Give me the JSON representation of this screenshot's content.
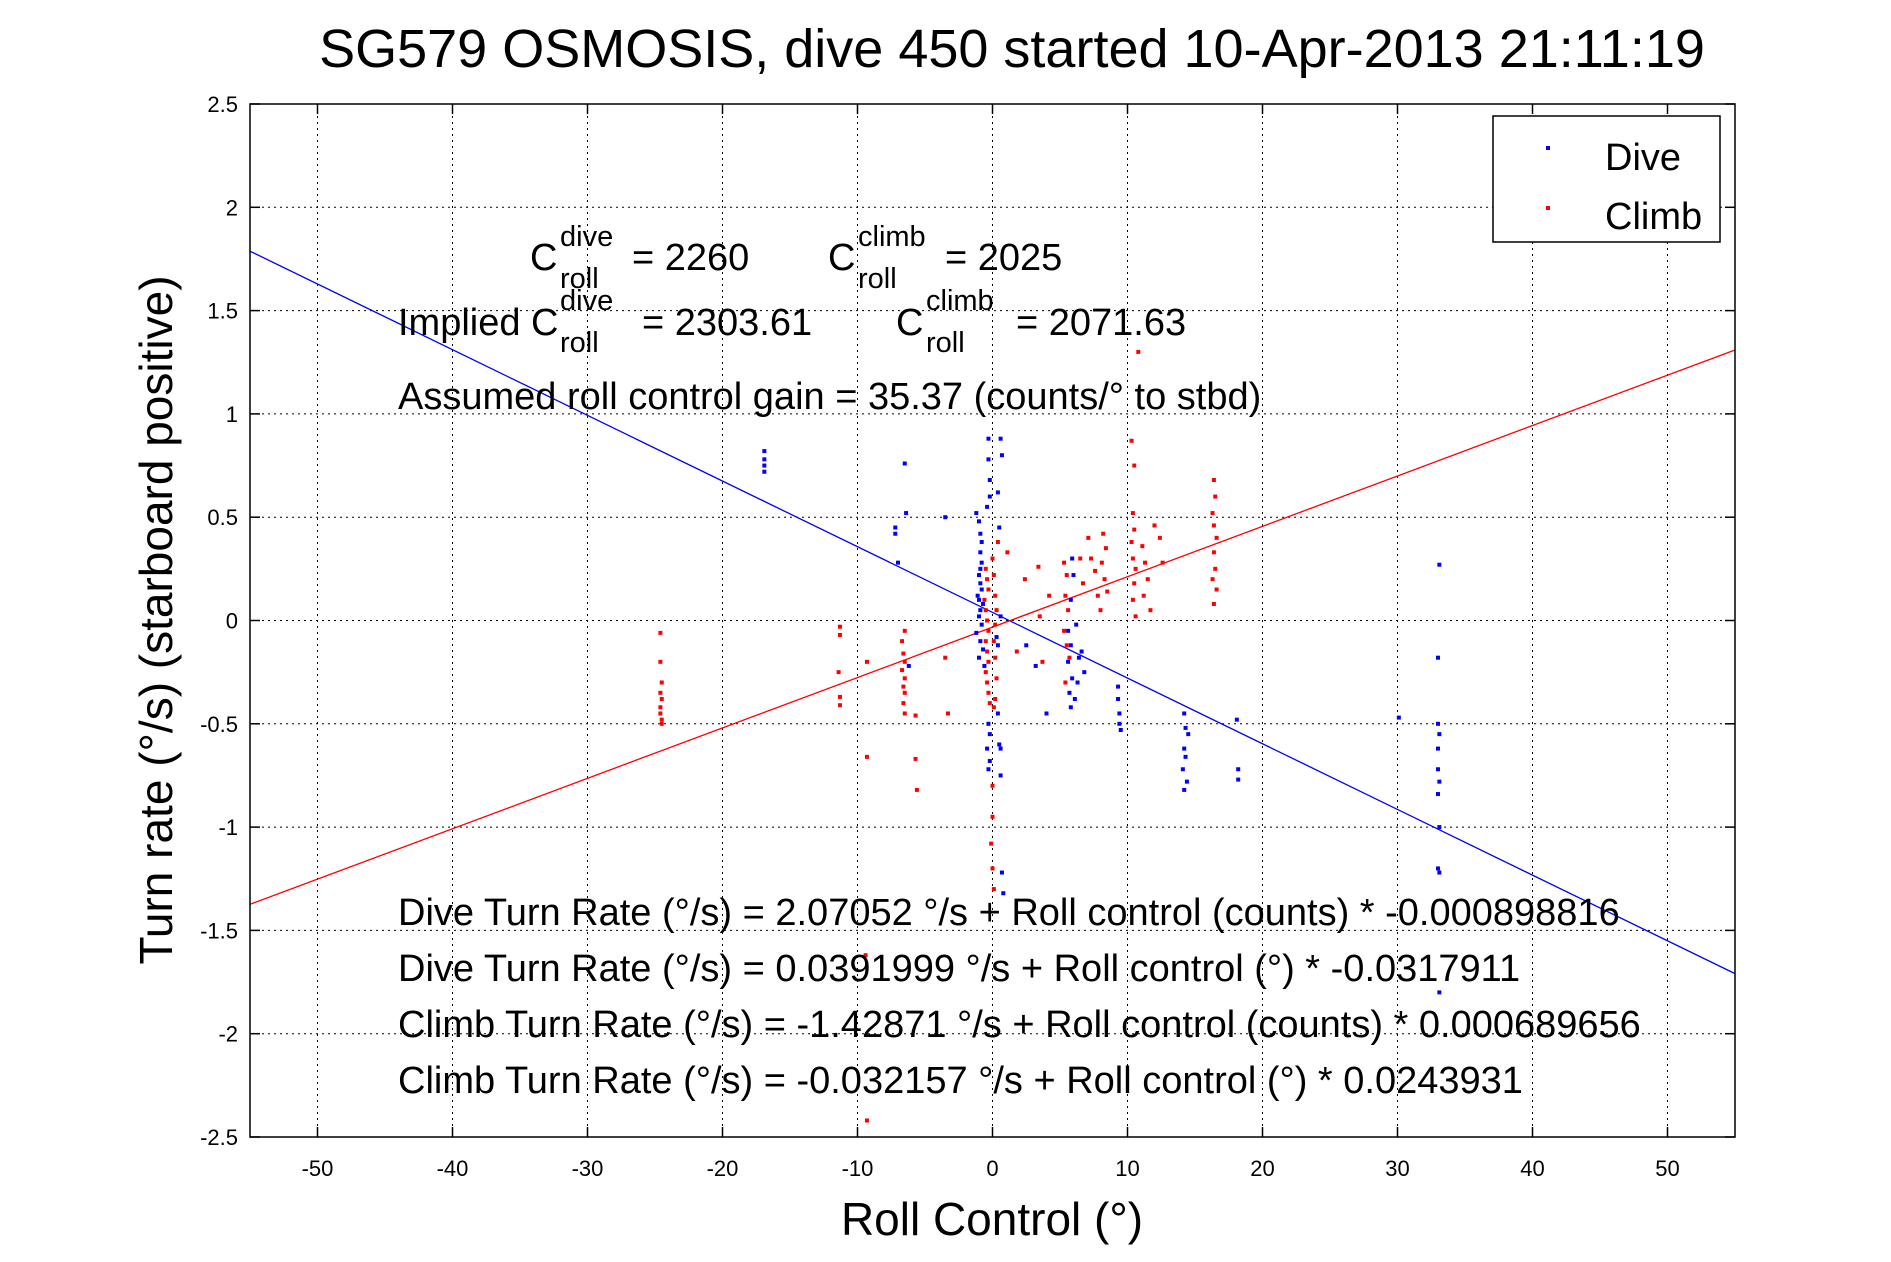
{
  "chart_data": {
    "type": "scatter",
    "title": "SG579 OSMOSIS, dive 450 started 10-Apr-2013 21:11:19",
    "xlabel": "Roll Control (°)",
    "ylabel": "Turn rate (°/s) (starboard positive)",
    "xlim": [
      -55,
      55
    ],
    "ylim": [
      -2.5,
      2.5
    ],
    "xticks": [
      -50,
      -40,
      -30,
      -20,
      -10,
      0,
      10,
      20,
      30,
      40,
      50
    ],
    "yticks": [
      -2.5,
      -2,
      -1.5,
      -1,
      -0.5,
      0,
      0.5,
      1,
      1.5,
      2,
      2.5
    ],
    "xtick_labels": [
      "-50",
      "-40",
      "-30",
      "-20",
      "-10",
      "0",
      "10",
      "20",
      "30",
      "40",
      "50"
    ],
    "ytick_labels": [
      "-2.5",
      "-2",
      "-1.5",
      "-1",
      "-0.5",
      "0",
      "0.5",
      "1",
      "1.5",
      "2",
      "2.5"
    ],
    "grid": true,
    "legend_position": "top-right",
    "series": [
      {
        "name": "Dive",
        "color": "#0000ff",
        "points": [
          [
            -16.9,
            0.82
          ],
          [
            -16.9,
            0.78
          ],
          [
            -16.9,
            0.75
          ],
          [
            -16.9,
            0.72
          ],
          [
            -6.5,
            0.76
          ],
          [
            -7.2,
            0.45
          ],
          [
            -7.2,
            0.42
          ],
          [
            -7.0,
            0.28
          ],
          [
            -6.4,
            0.52
          ],
          [
            -3.5,
            0.5
          ],
          [
            -6.2,
            -0.22
          ],
          [
            -1.2,
            0.52
          ],
          [
            -1.0,
            0.48
          ],
          [
            -0.9,
            0.42
          ],
          [
            -0.8,
            0.38
          ],
          [
            -0.9,
            0.33
          ],
          [
            -0.8,
            0.28
          ],
          [
            -0.9,
            0.25
          ],
          [
            -1.0,
            0.22
          ],
          [
            -0.9,
            0.18
          ],
          [
            -0.8,
            0.15
          ],
          [
            -1.1,
            0.12
          ],
          [
            -1.0,
            0.1
          ],
          [
            -0.7,
            0.08
          ],
          [
            -0.9,
            0.05
          ],
          [
            -1.0,
            0.02
          ],
          [
            -0.8,
            -0.02
          ],
          [
            -1.2,
            -0.06
          ],
          [
            -0.9,
            -0.1
          ],
          [
            -0.7,
            -0.14
          ],
          [
            -1.0,
            -0.18
          ],
          [
            -0.6,
            -0.22
          ],
          [
            -0.3,
            0.88
          ],
          [
            -0.3,
            0.78
          ],
          [
            -0.2,
            0.68
          ],
          [
            -0.2,
            0.6
          ],
          [
            -0.4,
            0.55
          ],
          [
            0.6,
            0.88
          ],
          [
            0.7,
            0.8
          ],
          [
            0.4,
            0.62
          ],
          [
            0.5,
            0.45
          ],
          [
            -0.3,
            -0.5
          ],
          [
            -0.2,
            -0.55
          ],
          [
            -0.4,
            -0.62
          ],
          [
            -0.2,
            -0.68
          ],
          [
            -0.3,
            -0.72
          ],
          [
            0.4,
            -0.45
          ],
          [
            0.5,
            -0.6
          ],
          [
            0.6,
            -0.62
          ],
          [
            0.6,
            -0.75
          ],
          [
            0.7,
            -1.22
          ],
          [
            0.8,
            -1.32
          ],
          [
            0.3,
            -0.08
          ],
          [
            0.4,
            -0.12
          ],
          [
            0.6,
            0.02
          ],
          [
            2.5,
            -0.12
          ],
          [
            3.2,
            -0.22
          ],
          [
            4.0,
            -0.45
          ],
          [
            5.6,
            -0.05
          ],
          [
            5.8,
            -0.12
          ],
          [
            5.6,
            -0.2
          ],
          [
            5.9,
            -0.28
          ],
          [
            5.7,
            -0.35
          ],
          [
            5.8,
            -0.42
          ],
          [
            6.2,
            -0.02
          ],
          [
            6.4,
            -0.18
          ],
          [
            6.3,
            -0.3
          ],
          [
            6.1,
            -0.38
          ],
          [
            6.6,
            -0.15
          ],
          [
            6.8,
            -0.25
          ],
          [
            5.8,
            0.1
          ],
          [
            6.0,
            0.22
          ],
          [
            5.9,
            0.3
          ],
          [
            9.3,
            -0.32
          ],
          [
            9.3,
            -0.38
          ],
          [
            9.4,
            -0.45
          ],
          [
            9.4,
            -0.5
          ],
          [
            9.5,
            -0.53
          ],
          [
            14.2,
            -0.45
          ],
          [
            14.3,
            -0.52
          ],
          [
            14.2,
            -0.62
          ],
          [
            14.3,
            -0.66
          ],
          [
            14.1,
            -0.72
          ],
          [
            14.4,
            -0.78
          ],
          [
            14.2,
            -0.82
          ],
          [
            14.5,
            -0.55
          ],
          [
            18.1,
            -0.48
          ],
          [
            18.2,
            -0.72
          ],
          [
            18.2,
            -0.77
          ],
          [
            30.1,
            -0.47
          ],
          [
            33.1,
            0.27
          ],
          [
            33.0,
            -0.18
          ],
          [
            33.0,
            -0.5
          ],
          [
            33.1,
            -0.55
          ],
          [
            33.0,
            -0.62
          ],
          [
            33.0,
            -0.72
          ],
          [
            33.1,
            -0.78
          ],
          [
            33.0,
            -0.84
          ],
          [
            33.1,
            -1.0
          ],
          [
            33.0,
            -1.2
          ],
          [
            33.1,
            -1.22
          ],
          [
            33.1,
            -1.8
          ]
        ]
      },
      {
        "name": "Climb",
        "color": "#ff0000",
        "points": [
          [
            -24.6,
            -0.06
          ],
          [
            -24.6,
            -0.2
          ],
          [
            -24.5,
            -0.3
          ],
          [
            -24.6,
            -0.35
          ],
          [
            -24.5,
            -0.38
          ],
          [
            -24.6,
            -0.42
          ],
          [
            -24.6,
            -0.45
          ],
          [
            -24.5,
            -0.48
          ],
          [
            -24.5,
            -0.5
          ],
          [
            -11.3,
            -0.03
          ],
          [
            -11.3,
            -0.07
          ],
          [
            -11.4,
            -0.25
          ],
          [
            -11.3,
            -0.37
          ],
          [
            -11.3,
            -0.41
          ],
          [
            -9.3,
            -0.2
          ],
          [
            -9.3,
            -0.66
          ],
          [
            -9.4,
            -1.62
          ],
          [
            -9.3,
            -2.42
          ],
          [
            -6.5,
            -0.05
          ],
          [
            -6.7,
            -0.1
          ],
          [
            -6.6,
            -0.16
          ],
          [
            -6.5,
            -0.2
          ],
          [
            -6.7,
            -0.24
          ],
          [
            -6.5,
            -0.28
          ],
          [
            -6.6,
            -0.32
          ],
          [
            -6.5,
            -0.35
          ],
          [
            -6.6,
            -0.4
          ],
          [
            -6.5,
            -0.45
          ],
          [
            -5.7,
            -0.46
          ],
          [
            -5.7,
            -0.67
          ],
          [
            -5.6,
            -0.82
          ],
          [
            -3.5,
            -0.18
          ],
          [
            -3.3,
            -0.45
          ],
          [
            -0.5,
            0.25
          ],
          [
            -0.4,
            0.2
          ],
          [
            -0.3,
            0.15
          ],
          [
            -0.6,
            0.1
          ],
          [
            -0.5,
            0.05
          ],
          [
            -0.4,
            0.0
          ],
          [
            -0.3,
            -0.05
          ],
          [
            -0.5,
            -0.1
          ],
          [
            -0.4,
            -0.15
          ],
          [
            -0.3,
            -0.2
          ],
          [
            -0.5,
            -0.25
          ],
          [
            -0.4,
            -0.3
          ],
          [
            -0.3,
            -0.35
          ],
          [
            -0.2,
            -0.4
          ],
          [
            0.1,
            -0.42
          ],
          [
            0.0,
            0.3
          ],
          [
            0.1,
            0.22
          ],
          [
            0.2,
            0.12
          ],
          [
            0.3,
            0.05
          ],
          [
            0.2,
            -0.02
          ],
          [
            0.1,
            -0.1
          ],
          [
            0.2,
            -0.18
          ],
          [
            0.3,
            -0.28
          ],
          [
            0.2,
            -0.38
          ],
          [
            0.0,
            -0.8
          ],
          [
            0.0,
            -0.95
          ],
          [
            -0.1,
            -1.08
          ],
          [
            0.0,
            -1.2
          ],
          [
            0.1,
            -1.3
          ],
          [
            0.4,
            0.38
          ],
          [
            1.1,
            0.33
          ],
          [
            2.4,
            0.2
          ],
          [
            1.8,
            -0.15
          ],
          [
            3.4,
            0.26
          ],
          [
            3.5,
            0.02
          ],
          [
            3.7,
            -0.2
          ],
          [
            4.2,
            0.12
          ],
          [
            5.3,
            0.28
          ],
          [
            5.5,
            0.22
          ],
          [
            5.4,
            0.12
          ],
          [
            5.6,
            0.05
          ],
          [
            5.3,
            -0.05
          ],
          [
            5.5,
            -0.12
          ],
          [
            5.7,
            -0.18
          ],
          [
            5.4,
            -0.3
          ],
          [
            6.5,
            0.3
          ],
          [
            6.7,
            0.18
          ],
          [
            7.1,
            0.4
          ],
          [
            7.3,
            0.3
          ],
          [
            7.6,
            0.24
          ],
          [
            7.8,
            0.12
          ],
          [
            8.0,
            0.05
          ],
          [
            8.2,
            0.42
          ],
          [
            8.4,
            0.35
          ],
          [
            8.1,
            0.28
          ],
          [
            8.3,
            0.2
          ],
          [
            8.5,
            0.14
          ],
          [
            10.3,
            0.87
          ],
          [
            10.5,
            0.75
          ],
          [
            10.4,
            0.52
          ],
          [
            10.5,
            0.44
          ],
          [
            10.3,
            0.38
          ],
          [
            10.4,
            0.3
          ],
          [
            10.6,
            0.25
          ],
          [
            10.5,
            0.18
          ],
          [
            10.4,
            0.1
          ],
          [
            10.6,
            0.02
          ],
          [
            10.8,
            1.3
          ],
          [
            11.1,
            0.36
          ],
          [
            11.3,
            0.28
          ],
          [
            11.5,
            0.2
          ],
          [
            11.2,
            0.12
          ],
          [
            11.7,
            0.05
          ],
          [
            12.0,
            0.46
          ],
          [
            12.4,
            0.4
          ],
          [
            12.6,
            0.28
          ],
          [
            16.4,
            0.68
          ],
          [
            16.5,
            0.6
          ],
          [
            16.3,
            0.52
          ],
          [
            16.4,
            0.46
          ],
          [
            16.6,
            0.4
          ],
          [
            16.4,
            0.33
          ],
          [
            16.5,
            0.25
          ],
          [
            16.3,
            0.2
          ],
          [
            16.6,
            0.15
          ],
          [
            16.4,
            0.08
          ]
        ]
      }
    ],
    "fit_lines": [
      {
        "name": "Dive",
        "color": "#0000ff",
        "intercept": 0.0391999,
        "slope": -0.0317911
      },
      {
        "name": "Climb",
        "color": "#ff0000",
        "intercept": -0.032157,
        "slope": 0.0243931
      }
    ],
    "annotations": {
      "c_dive": {
        "base": "C",
        "sup": "dive",
        "sub": "roll",
        "value": "= 2260"
      },
      "c_climb": {
        "base": "C",
        "sup": "climb",
        "sub": "roll",
        "value": "= 2025"
      },
      "implied_prefix": "Implied C",
      "implied_dive": {
        "sup": "dive",
        "sub": "roll",
        "value": "= 2303.61"
      },
      "implied_climb": {
        "base": "C",
        "sup": "climb",
        "sub": "roll",
        "value": "= 2071.63"
      },
      "gain": "Assumed roll control gain = 35.37 (counts/° to stbd)",
      "eq1": "Dive Turn Rate (°/s) = 2.07052 °/s + Roll control (counts) * -0.000898816",
      "eq2": "Dive Turn Rate (°/s) = 0.0391999 °/s + Roll control (°) * -0.0317911",
      "eq3": "Climb Turn Rate (°/s) = -1.42871 °/s + Roll control (counts) * 0.000689656",
      "eq4": "Climb Turn Rate (°/s) = -0.032157 °/s + Roll control (°) * 0.0243931"
    }
  }
}
